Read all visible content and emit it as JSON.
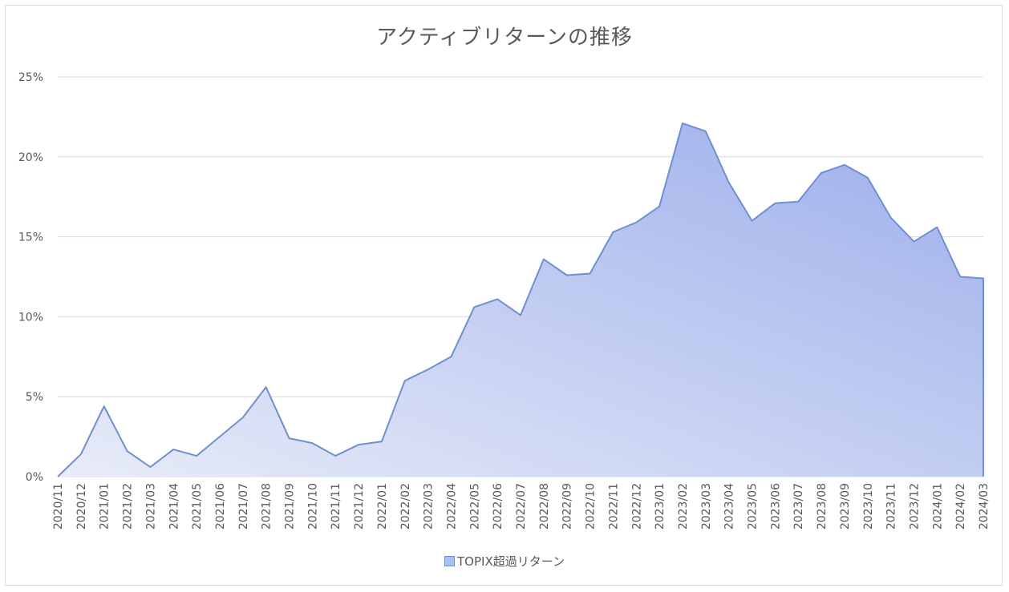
{
  "chart_data": {
    "type": "area",
    "title": "アクティブリターンの推移",
    "xlabel": "",
    "ylabel": "",
    "ylim": [
      0,
      0.25
    ],
    "yticks": [
      {
        "value": 0,
        "label": "0%"
      },
      {
        "value": 0.05,
        "label": "5%"
      },
      {
        "value": 0.1,
        "label": "10%"
      },
      {
        "value": 0.15,
        "label": "15%"
      },
      {
        "value": 0.2,
        "label": "20%"
      },
      {
        "value": 0.25,
        "label": "25%"
      }
    ],
    "grid": true,
    "legend_position": "bottom",
    "colors": {
      "line": "#6f8fd0",
      "fill_light": "#e8ecf8",
      "fill_dark": "#9caeeb",
      "grid": "#d9d9d9",
      "text": "#595959"
    },
    "categories": [
      "2020/11",
      "2020/12",
      "2021/01",
      "2021/02",
      "2021/03",
      "2021/04",
      "2021/05",
      "2021/06",
      "2021/07",
      "2021/08",
      "2021/09",
      "2021/10",
      "2021/11",
      "2021/12",
      "2022/01",
      "2022/02",
      "2022/03",
      "2022/04",
      "2022/05",
      "2022/06",
      "2022/07",
      "2022/08",
      "2022/09",
      "2022/10",
      "2022/11",
      "2022/12",
      "2023/01",
      "2023/02",
      "2023/03",
      "2023/04",
      "2023/05",
      "2023/06",
      "2023/07",
      "2023/08",
      "2023/09",
      "2023/10",
      "2023/11",
      "2023/12",
      "2024/01",
      "2024/02",
      "2024/03"
    ],
    "series": [
      {
        "name": "TOPIX超過リターン",
        "values": [
          0.0,
          0.014,
          0.044,
          0.016,
          0.006,
          0.017,
          0.013,
          0.025,
          0.037,
          0.056,
          0.024,
          0.021,
          0.013,
          0.02,
          0.022,
          0.06,
          0.067,
          0.075,
          0.106,
          0.111,
          0.101,
          0.136,
          0.126,
          0.127,
          0.153,
          0.159,
          0.169,
          0.221,
          0.216,
          0.184,
          0.16,
          0.171,
          0.172,
          0.19,
          0.195,
          0.187,
          0.162,
          0.147,
          0.156,
          0.125,
          0.124
        ]
      }
    ]
  }
}
